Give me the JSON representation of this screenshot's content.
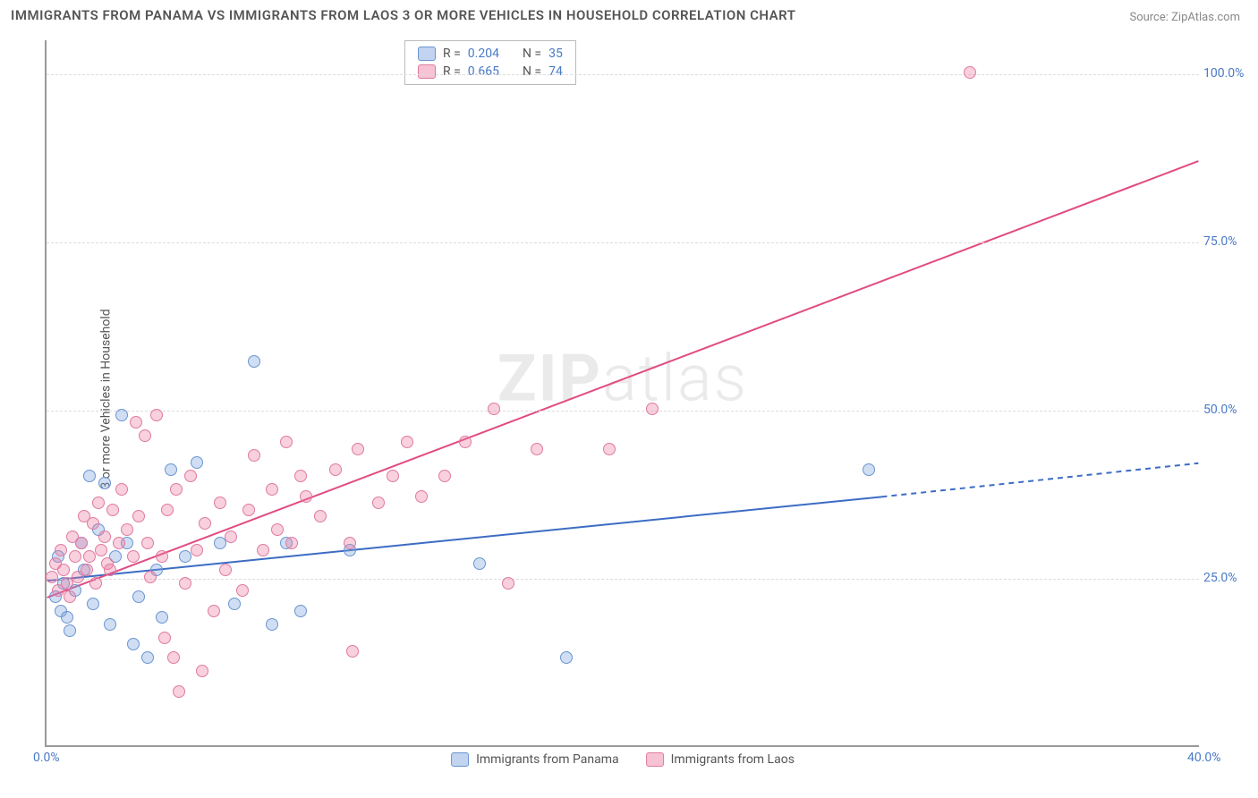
{
  "title": "IMMIGRANTS FROM PANAMA VS IMMIGRANTS FROM LAOS 3 OR MORE VEHICLES IN HOUSEHOLD CORRELATION CHART",
  "source": "Source: ZipAtlas.com",
  "ylabel": "3 or more Vehicles in Household",
  "watermark_a": "ZIP",
  "watermark_b": "atlas",
  "chart": {
    "type": "scatter",
    "xlim": [
      0,
      40
    ],
    "ylim": [
      0,
      105
    ],
    "xticks": [
      {
        "v": 0,
        "l": "0.0%"
      },
      {
        "v": 40,
        "l": "40.0%"
      }
    ],
    "yticks": [
      {
        "v": 25,
        "l": "25.0%"
      },
      {
        "v": 50,
        "l": "50.0%"
      },
      {
        "v": 75,
        "l": "75.0%"
      },
      {
        "v": 100,
        "l": "100.0%"
      }
    ],
    "grid_color": "#dddddd",
    "background_color": "#ffffff",
    "marker_size": 14,
    "series": [
      {
        "name": "Immigrants from Panama",
        "key": "a",
        "color": "#6a95d0",
        "fill": "rgba(120,160,220,0.35)",
        "R": "0.204",
        "N": "35",
        "trend": {
          "x1": 0,
          "y1": 24.5,
          "x2": 29,
          "y2": 37,
          "dash_after_x": 29,
          "x3": 40,
          "y3": 42,
          "color": "#3c6cc4",
          "width": 2
        },
        "points": [
          [
            0.3,
            22
          ],
          [
            0.4,
            28
          ],
          [
            0.5,
            20
          ],
          [
            0.6,
            24
          ],
          [
            0.7,
            19
          ],
          [
            0.8,
            17
          ],
          [
            1.0,
            23
          ],
          [
            1.2,
            30
          ],
          [
            1.3,
            26
          ],
          [
            1.5,
            40
          ],
          [
            1.6,
            21
          ],
          [
            1.8,
            32
          ],
          [
            2.0,
            39
          ],
          [
            2.2,
            18
          ],
          [
            2.4,
            28
          ],
          [
            2.6,
            49
          ],
          [
            2.8,
            30
          ],
          [
            3.0,
            15
          ],
          [
            3.2,
            22
          ],
          [
            3.5,
            13
          ],
          [
            3.8,
            26
          ],
          [
            4.0,
            19
          ],
          [
            4.3,
            41
          ],
          [
            4.8,
            28
          ],
          [
            5.2,
            42
          ],
          [
            6.0,
            30
          ],
          [
            6.5,
            21
          ],
          [
            7.2,
            57
          ],
          [
            7.8,
            18
          ],
          [
            8.3,
            30
          ],
          [
            8.8,
            20
          ],
          [
            10.5,
            29
          ],
          [
            15.0,
            27
          ],
          [
            18.0,
            13
          ],
          [
            28.5,
            41
          ]
        ]
      },
      {
        "name": "Immigrants from Laos",
        "key": "b",
        "color": "#e07aa0",
        "fill": "rgba(235,120,160,0.35)",
        "R": "0.665",
        "N": "74",
        "trend": {
          "x1": 0,
          "y1": 22,
          "x2": 40,
          "y2": 87,
          "color": "#e14b82",
          "width": 2
        },
        "points": [
          [
            0.2,
            25
          ],
          [
            0.3,
            27
          ],
          [
            0.4,
            23
          ],
          [
            0.5,
            29
          ],
          [
            0.6,
            26
          ],
          [
            0.7,
            24
          ],
          [
            0.8,
            22
          ],
          [
            0.9,
            31
          ],
          [
            1.0,
            28
          ],
          [
            1.1,
            25
          ],
          [
            1.2,
            30
          ],
          [
            1.3,
            34
          ],
          [
            1.4,
            26
          ],
          [
            1.5,
            28
          ],
          [
            1.6,
            33
          ],
          [
            1.7,
            24
          ],
          [
            1.8,
            36
          ],
          [
            1.9,
            29
          ],
          [
            2.0,
            31
          ],
          [
            2.1,
            27
          ],
          [
            2.2,
            26
          ],
          [
            2.3,
            35
          ],
          [
            2.5,
            30
          ],
          [
            2.6,
            38
          ],
          [
            2.8,
            32
          ],
          [
            3.0,
            28
          ],
          [
            3.1,
            48
          ],
          [
            3.2,
            34
          ],
          [
            3.4,
            46
          ],
          [
            3.5,
            30
          ],
          [
            3.6,
            25
          ],
          [
            3.8,
            49
          ],
          [
            4.0,
            28
          ],
          [
            4.1,
            16
          ],
          [
            4.2,
            35
          ],
          [
            4.4,
            13
          ],
          [
            4.5,
            38
          ],
          [
            4.6,
            8
          ],
          [
            4.8,
            24
          ],
          [
            5.0,
            40
          ],
          [
            5.2,
            29
          ],
          [
            5.4,
            11
          ],
          [
            5.5,
            33
          ],
          [
            5.8,
            20
          ],
          [
            6.0,
            36
          ],
          [
            6.2,
            26
          ],
          [
            6.4,
            31
          ],
          [
            6.8,
            23
          ],
          [
            7.0,
            35
          ],
          [
            7.2,
            43
          ],
          [
            7.5,
            29
          ],
          [
            7.8,
            38
          ],
          [
            8.0,
            32
          ],
          [
            8.3,
            45
          ],
          [
            8.5,
            30
          ],
          [
            8.8,
            40
          ],
          [
            9.0,
            37
          ],
          [
            9.5,
            34
          ],
          [
            10.0,
            41
          ],
          [
            10.5,
            30
          ],
          [
            10.8,
            44
          ],
          [
            11.5,
            36
          ],
          [
            12.0,
            40
          ],
          [
            12.5,
            45
          ],
          [
            13.0,
            37
          ],
          [
            13.8,
            40
          ],
          [
            14.5,
            45
          ],
          [
            15.5,
            50
          ],
          [
            16.0,
            24
          ],
          [
            17.0,
            44
          ],
          [
            19.5,
            44
          ],
          [
            21.0,
            50
          ],
          [
            32.0,
            100
          ],
          [
            10.6,
            14
          ]
        ]
      }
    ],
    "legend_top": {
      "r_label": "R =",
      "n_label": "N ="
    },
    "legend_bottom": [
      {
        "key": "a",
        "label": "Immigrants from Panama"
      },
      {
        "key": "b",
        "label": "Immigrants from Laos"
      }
    ]
  }
}
